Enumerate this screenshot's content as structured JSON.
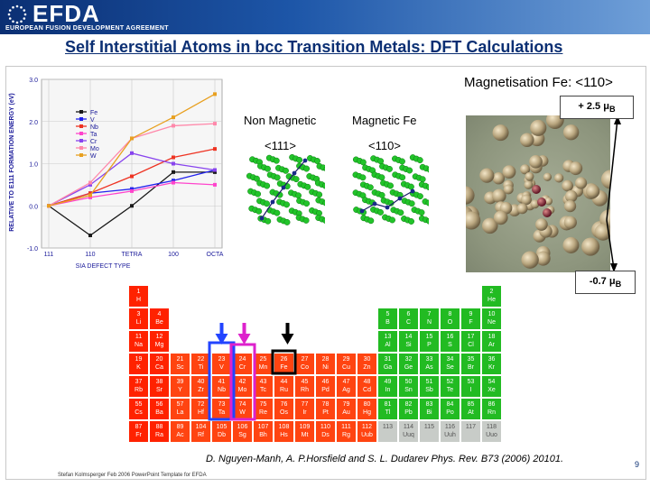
{
  "header": {
    "logo_text": "EFDA",
    "agreement": "EUROPEAN FUSION DEVELOPMENT AGREEMENT"
  },
  "slide": {
    "title": "Self Interstitial Atoms in bcc Transition Metals: DFT Calculations",
    "page_number": "9",
    "footer": "Stefan Kolmsperger Feb 2006 PowerPoint Template for EFDA",
    "citation": "D. Nguyen-Manh, A. P.Horsfield and S. L. Dudarev Phys. Rev. B73 (2006) 20101."
  },
  "structures": {
    "nonmag_label": "Non Magnetic",
    "mag_label": "Magnetic Fe",
    "nonmag_dir": "<111>",
    "mag_dir": "<110>"
  },
  "magnetisation": {
    "title": "Magnetisation Fe: <110>",
    "top_value": "+ 2.5 μ",
    "bottom_value": "-0.7 μ",
    "unit_sub": "B"
  },
  "chart_data": {
    "type": "line",
    "ylabel": "RELATIVE TO E111 FORMATION ENERGY (eV)",
    "xlabel": "SIA DEFECT TYPE",
    "categories": [
      "111",
      "110",
      "TETRA",
      "100",
      "OCTA"
    ],
    "y_ticks": [
      "-1.0",
      "0.0",
      "1.0",
      "2.0",
      "3.0"
    ],
    "ylim": [
      -1.0,
      3.0
    ],
    "legend_position": "top-left",
    "grid": true,
    "series": [
      {
        "name": "Fe",
        "color": "#1a1a1a",
        "values": [
          0.0,
          -0.7,
          0.0,
          0.8,
          0.8
        ]
      },
      {
        "name": "V",
        "color": "#2222ee",
        "values": [
          0.0,
          0.3,
          0.4,
          0.6,
          0.85
        ]
      },
      {
        "name": "Nb",
        "color": "#ee3322",
        "values": [
          0.0,
          0.3,
          0.7,
          1.15,
          1.35
        ]
      },
      {
        "name": "Ta",
        "color": "#ff44cc",
        "values": [
          0.0,
          0.2,
          0.35,
          0.55,
          0.5
        ]
      },
      {
        "name": "Cr",
        "color": "#8844ee",
        "values": [
          0.0,
          0.5,
          1.25,
          1.0,
          0.85
        ]
      },
      {
        "name": "Mo",
        "color": "#ff88aa",
        "values": [
          0.0,
          0.55,
          1.6,
          1.9,
          1.95
        ]
      },
      {
        "name": "W",
        "color": "#e8a020",
        "values": [
          0.0,
          0.25,
          1.6,
          2.1,
          2.65
        ]
      }
    ]
  },
  "periodic_table": {
    "colors": {
      "s": "#ff2200",
      "d": "#ff4411",
      "p": "#22bb22",
      "synthetic": "#c8ccc8",
      "blue_box": "#2244ff",
      "magenta_box": "#dd22cc"
    },
    "rows": [
      [
        [
          "1",
          "H",
          1,
          "s"
        ],
        [
          "2",
          "He",
          18,
          "p"
        ]
      ],
      [
        [
          "3",
          "Li",
          1,
          "s"
        ],
        [
          "4",
          "Be",
          2,
          "s"
        ],
        [
          "5",
          "B",
          13,
          "p"
        ],
        [
          "6",
          "C",
          14,
          "p"
        ],
        [
          "7",
          "N",
          15,
          "p"
        ],
        [
          "8",
          "O",
          16,
          "p"
        ],
        [
          "9",
          "F",
          17,
          "p"
        ],
        [
          "10",
          "Ne",
          18,
          "p"
        ]
      ],
      [
        [
          "11",
          "Na",
          1,
          "s"
        ],
        [
          "12",
          "Mg",
          2,
          "s"
        ],
        [
          "13",
          "Al",
          13,
          "p"
        ],
        [
          "14",
          "Si",
          14,
          "p"
        ],
        [
          "15",
          "P",
          15,
          "p"
        ],
        [
          "16",
          "S",
          16,
          "p"
        ],
        [
          "17",
          "Cl",
          17,
          "p"
        ],
        [
          "18",
          "Ar",
          18,
          "p"
        ]
      ],
      [
        [
          "19",
          "K",
          1,
          "s"
        ],
        [
          "20",
          "Ca",
          2,
          "s"
        ],
        [
          "21",
          "Sc",
          3,
          "d"
        ],
        [
          "22",
          "Ti",
          4,
          "d"
        ],
        [
          "23",
          "V",
          5,
          "d"
        ],
        [
          "24",
          "Cr",
          6,
          "d"
        ],
        [
          "25",
          "Mn",
          7,
          "d"
        ],
        [
          "26",
          "Fe",
          8,
          "d"
        ],
        [
          "27",
          "Co",
          9,
          "d"
        ],
        [
          "28",
          "Ni",
          10,
          "d"
        ],
        [
          "29",
          "Cu",
          11,
          "d"
        ],
        [
          "30",
          "Zn",
          12,
          "d"
        ],
        [
          "31",
          "Ga",
          13,
          "p"
        ],
        [
          "32",
          "Ge",
          14,
          "p"
        ],
        [
          "33",
          "As",
          15,
          "p"
        ],
        [
          "34",
          "Se",
          16,
          "p"
        ],
        [
          "35",
          "Br",
          17,
          "p"
        ],
        [
          "36",
          "Kr",
          18,
          "p"
        ]
      ],
      [
        [
          "37",
          "Rb",
          1,
          "s"
        ],
        [
          "38",
          "Sr",
          2,
          "s"
        ],
        [
          "39",
          "Y",
          3,
          "d"
        ],
        [
          "40",
          "Zr",
          4,
          "d"
        ],
        [
          "41",
          "Nb",
          5,
          "d"
        ],
        [
          "42",
          "Mo",
          6,
          "d"
        ],
        [
          "43",
          "Tc",
          7,
          "d"
        ],
        [
          "44",
          "Ru",
          8,
          "d"
        ],
        [
          "45",
          "Rh",
          9,
          "d"
        ],
        [
          "46",
          "Pd",
          10,
          "d"
        ],
        [
          "47",
          "Ag",
          11,
          "d"
        ],
        [
          "48",
          "Cd",
          12,
          "d"
        ],
        [
          "49",
          "In",
          13,
          "p"
        ],
        [
          "50",
          "Sn",
          14,
          "p"
        ],
        [
          "51",
          "Sb",
          15,
          "p"
        ],
        [
          "52",
          "Te",
          16,
          "p"
        ],
        [
          "53",
          "I",
          17,
          "p"
        ],
        [
          "54",
          "Xe",
          18,
          "p"
        ]
      ],
      [
        [
          "55",
          "Cs",
          1,
          "s"
        ],
        [
          "56",
          "Ba",
          2,
          "s"
        ],
        [
          "57",
          "La",
          3,
          "d"
        ],
        [
          "72",
          "Hf",
          4,
          "d"
        ],
        [
          "73",
          "Ta",
          5,
          "d"
        ],
        [
          "74",
          "W",
          6,
          "d"
        ],
        [
          "75",
          "Re",
          7,
          "d"
        ],
        [
          "76",
          "Os",
          8,
          "d"
        ],
        [
          "77",
          "Ir",
          9,
          "d"
        ],
        [
          "78",
          "Pt",
          10,
          "d"
        ],
        [
          "79",
          "Au",
          11,
          "d"
        ],
        [
          "80",
          "Hg",
          12,
          "d"
        ],
        [
          "81",
          "Tl",
          13,
          "p"
        ],
        [
          "82",
          "Pb",
          14,
          "p"
        ],
        [
          "83",
          "Bi",
          15,
          "p"
        ],
        [
          "84",
          "Po",
          16,
          "p"
        ],
        [
          "85",
          "At",
          17,
          "p"
        ],
        [
          "86",
          "Rn",
          18,
          "p"
        ]
      ],
      [
        [
          "87",
          "Fr",
          1,
          "s"
        ],
        [
          "88",
          "Ra",
          2,
          "s"
        ],
        [
          "89",
          "Ac",
          3,
          "d"
        ],
        [
          "104",
          "Rf",
          4,
          "d"
        ],
        [
          "105",
          "Db",
          5,
          "d"
        ],
        [
          "106",
          "Sg",
          6,
          "d"
        ],
        [
          "107",
          "Bh",
          7,
          "d"
        ],
        [
          "108",
          "Hs",
          8,
          "d"
        ],
        [
          "109",
          "Mt",
          9,
          "d"
        ],
        [
          "110",
          "Ds",
          10,
          "d"
        ],
        [
          "111",
          "Rg",
          11,
          "d"
        ],
        [
          "112",
          "Uub",
          12,
          "d"
        ],
        [
          "113",
          "",
          13,
          "synthetic"
        ],
        [
          "114",
          "Uuq",
          14,
          "synthetic"
        ],
        [
          "115",
          "",
          15,
          "synthetic"
        ],
        [
          "116",
          "Uuh",
          16,
          "synthetic"
        ],
        [
          "117",
          "",
          17,
          "synthetic"
        ],
        [
          "118",
          "Uuo",
          18,
          "synthetic"
        ]
      ]
    ]
  }
}
